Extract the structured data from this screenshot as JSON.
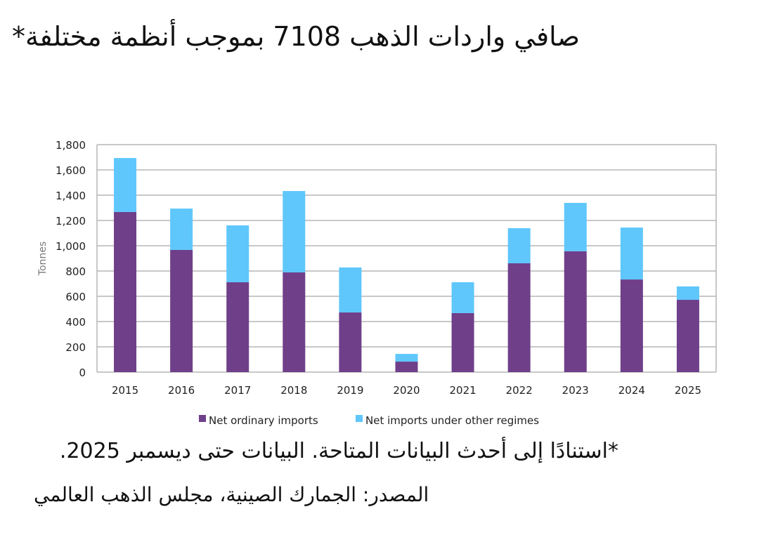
{
  "title": "صافي واردات الذهب 7108 بموجب أنظمة مختلفة*",
  "note": "*استنادًا إلى أحدث البيانات المتاحة. البيانات حتى ديسمبر 2025.",
  "source": "المصدر: الجمارك الصينية، مجلس الذهب العالمي",
  "chart_data": {
    "type": "bar",
    "stacked": true,
    "categories": [
      "2015",
      "2016",
      "2017",
      "2018",
      "2019",
      "2020",
      "2021",
      "2022",
      "2023",
      "2024",
      "2025"
    ],
    "series": [
      {
        "name": "Net ordinary imports",
        "color": "#6f3f8a",
        "values": [
          1267,
          967,
          711,
          789,
          472,
          83,
          467,
          861,
          956,
          733,
          572
        ]
      },
      {
        "name": "Net imports under other regimes",
        "color": "#5fc7fb",
        "values": [
          427,
          327,
          450,
          644,
          356,
          61,
          244,
          278,
          383,
          411,
          106
        ]
      }
    ],
    "ylabel": "Tonnes",
    "xlabel": "",
    "ylim": [
      0,
      1800
    ],
    "yticks": [
      "0",
      "200",
      "400",
      "600",
      "800",
      "1,000",
      "1,200",
      "1,400",
      "1,600",
      "1,800"
    ],
    "grid": true,
    "legend": "bottom"
  }
}
